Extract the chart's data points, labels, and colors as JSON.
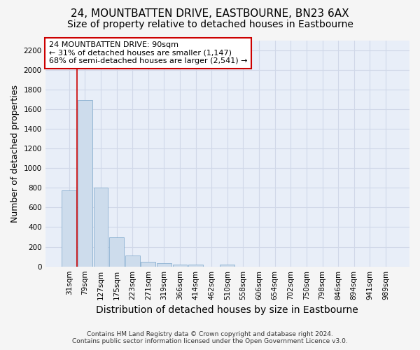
{
  "title": "24, MOUNTBATTEN DRIVE, EASTBOURNE, BN23 6AX",
  "subtitle": "Size of property relative to detached houses in Eastbourne",
  "xlabel": "Distribution of detached houses by size in Eastbourne",
  "ylabel": "Number of detached properties",
  "categories": [
    "31sqm",
    "79sqm",
    "127sqm",
    "175sqm",
    "223sqm",
    "271sqm",
    "319sqm",
    "366sqm",
    "414sqm",
    "462sqm",
    "510sqm",
    "558sqm",
    "606sqm",
    "654sqm",
    "702sqm",
    "750sqm",
    "798sqm",
    "846sqm",
    "894sqm",
    "941sqm",
    "989sqm"
  ],
  "values": [
    770,
    1690,
    800,
    300,
    110,
    45,
    32,
    22,
    20,
    0,
    20,
    0,
    0,
    0,
    0,
    0,
    0,
    0,
    0,
    0,
    0
  ],
  "bar_color": "#cddcec",
  "bar_edge_color": "#8ab0d0",
  "ylim": [
    0,
    2300
  ],
  "yticks": [
    0,
    200,
    400,
    600,
    800,
    1000,
    1200,
    1400,
    1600,
    1800,
    2000,
    2200
  ],
  "property_line_x": 0.5,
  "annotation_text": "24 MOUNTBATTEN DRIVE: 90sqm\n← 31% of detached houses are smaller (1,147)\n68% of semi-detached houses are larger (2,541) →",
  "annotation_box_color": "#ffffff",
  "annotation_box_edge_color": "#cc0000",
  "footer_line1": "Contains HM Land Registry data © Crown copyright and database right 2024.",
  "footer_line2": "Contains public sector information licensed under the Open Government Licence v3.0.",
  "fig_bg_color": "#f5f5f5",
  "plot_bg_color": "#e8eef8",
  "grid_color": "#d0d8e8",
  "title_fontsize": 11,
  "subtitle_fontsize": 10,
  "tick_fontsize": 7.5,
  "ylabel_fontsize": 9,
  "xlabel_fontsize": 10,
  "annotation_fontsize": 8
}
